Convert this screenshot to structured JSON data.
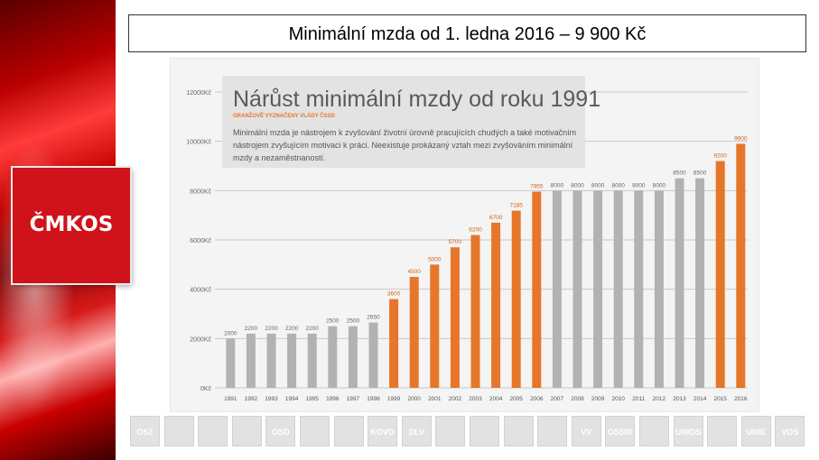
{
  "slide": {
    "title": "Minimální mzda od 1. ledna 2016 – 9 900 Kč",
    "logo_text": "ČMKOS"
  },
  "colors": {
    "orange": "#e6762a",
    "gray": "#b2b2b2",
    "brand_red": "#d0121b"
  },
  "chart_data": {
    "type": "bar",
    "title": "Nárůst minimální mzdy od roku 1991",
    "subtitle": "ORANŽOVĚ VYZNAČENY VLÁDY ČSSD",
    "description": "Minimální mzda je nástrojem k zvyšování životní úrovně pracujících chudých a také motivačním nástrojem zvyšujícím motivaci k práci. Neexistuje prokázaný vztah mezi zvyšováním minimální mzdy a nezaměstnaností.",
    "categories": [
      "1991",
      "1992",
      "1993",
      "1994",
      "1995",
      "1996",
      "1997",
      "1998",
      "1999",
      "2000",
      "2001",
      "2002",
      "2003",
      "2004",
      "2005",
      "2006",
      "2007",
      "2008",
      "2009",
      "2010",
      "2011",
      "2012",
      "2013",
      "2014",
      "2015",
      "2016"
    ],
    "values": [
      2000,
      2200,
      2200,
      2200,
      2200,
      2500,
      2500,
      2650,
      3600,
      4500,
      5000,
      5700,
      6200,
      6700,
      7185,
      7955,
      8000,
      8000,
      8000,
      8000,
      8000,
      8000,
      8500,
      8500,
      9200,
      9900
    ],
    "highlight": [
      false,
      false,
      false,
      false,
      false,
      false,
      false,
      false,
      true,
      true,
      true,
      true,
      true,
      true,
      true,
      true,
      false,
      false,
      false,
      false,
      false,
      false,
      false,
      false,
      true,
      true
    ],
    "yticks": [
      "0Kč",
      "2000Kč",
      "4000Kč",
      "6000Kč",
      "8000Kč",
      "10000Kč",
      "12000Kč"
    ],
    "ylim": [
      0,
      12000
    ]
  },
  "footer_logos": [
    "OSZ",
    "",
    "",
    "",
    "OSD",
    "",
    "",
    "KOVO",
    "DLV",
    "",
    "",
    "",
    "",
    "VV",
    "OS500",
    "",
    "UNIOS",
    "",
    "UNIE",
    "VOS"
  ]
}
